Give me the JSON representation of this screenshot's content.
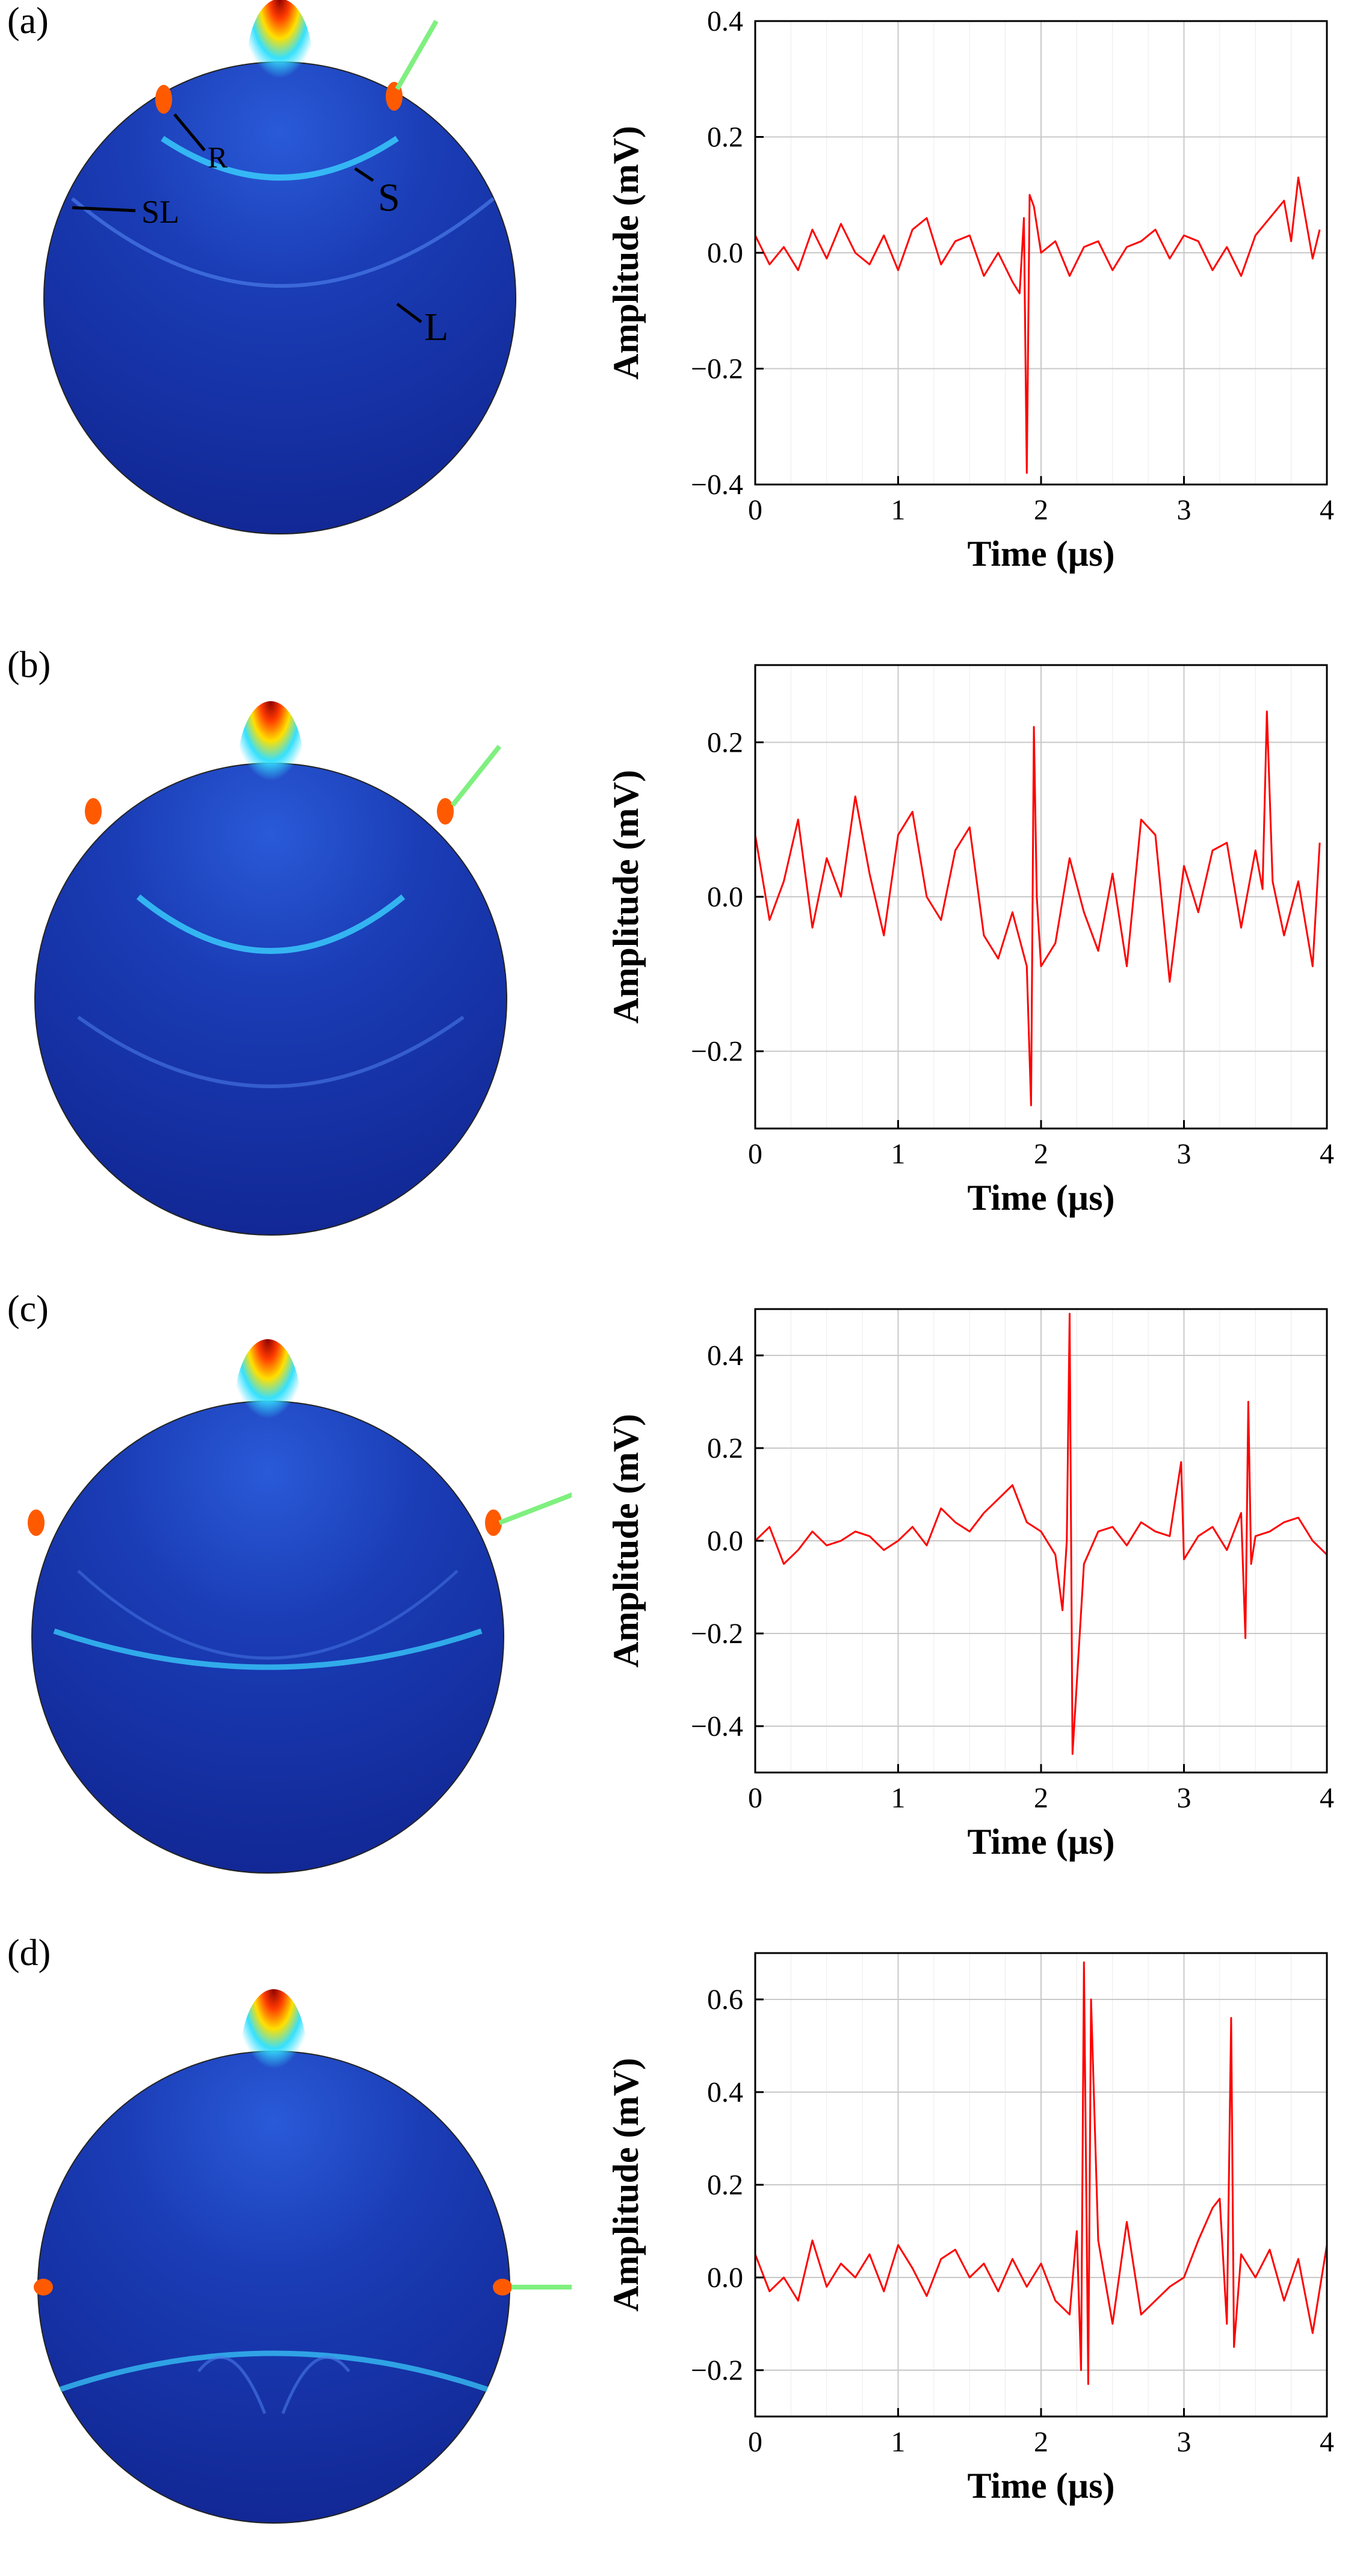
{
  "colors": {
    "signal": "#ff0000",
    "pointer_arrow": "#7ff07f",
    "field_background": "#12289a",
    "field_edge": "#1f4bd8",
    "hot_core": "#8a0000"
  },
  "panels": [
    {
      "label": "(a)",
      "annotations": [
        "R",
        "S",
        "SL",
        "L"
      ],
      "chart_data": {
        "type": "line",
        "xlabel": "Time (µs)",
        "ylabel": "Amplitude (mV)",
        "xlim": [
          0,
          4
        ],
        "ylim": [
          -0.4,
          0.4
        ],
        "xticks": [
          0,
          1,
          2,
          3,
          4
        ],
        "yticks": [
          -0.4,
          -0.2,
          0.0,
          0.2,
          0.4
        ],
        "ytick_labels": [
          "−0.4",
          "−0.2",
          "0.0",
          "0.2",
          "0.4"
        ],
        "grid": true,
        "series": [
          {
            "name": "signal",
            "x": [
              0,
              0.1,
              0.2,
              0.3,
              0.4,
              0.5,
              0.6,
              0.7,
              0.8,
              0.9,
              1.0,
              1.1,
              1.2,
              1.3,
              1.4,
              1.5,
              1.6,
              1.7,
              1.8,
              1.85,
              1.88,
              1.9,
              1.92,
              1.95,
              2.0,
              2.1,
              2.2,
              2.3,
              2.4,
              2.5,
              2.6,
              2.7,
              2.8,
              2.9,
              3.0,
              3.1,
              3.2,
              3.3,
              3.4,
              3.5,
              3.6,
              3.7,
              3.75,
              3.8,
              3.9,
              3.95
            ],
            "y": [
              0.03,
              -0.02,
              0.01,
              -0.03,
              0.04,
              -0.01,
              0.05,
              0.0,
              -0.02,
              0.03,
              -0.03,
              0.04,
              0.06,
              -0.02,
              0.02,
              0.03,
              -0.04,
              0.0,
              -0.05,
              -0.07,
              0.06,
              -0.38,
              0.1,
              0.08,
              0.0,
              0.02,
              -0.04,
              0.01,
              0.02,
              -0.03,
              0.01,
              0.02,
              0.04,
              -0.01,
              0.03,
              0.02,
              -0.03,
              0.01,
              -0.04,
              0.03,
              0.06,
              0.09,
              0.02,
              0.13,
              -0.01,
              0.04
            ]
          }
        ]
      }
    },
    {
      "label": "(b)",
      "annotations": [],
      "chart_data": {
        "type": "line",
        "xlabel": "Time (µs)",
        "ylabel": "Amplitude (mV)",
        "xlim": [
          0,
          4
        ],
        "ylim": [
          -0.3,
          0.3
        ],
        "xticks": [
          0,
          1,
          2,
          3,
          4
        ],
        "yticks": [
          -0.2,
          0.0,
          0.2
        ],
        "ytick_labels": [
          "−0.2",
          "0.0",
          "0.2"
        ],
        "grid": true,
        "series": [
          {
            "name": "signal",
            "x": [
              0,
              0.1,
              0.2,
              0.3,
              0.4,
              0.5,
              0.6,
              0.7,
              0.8,
              0.9,
              1.0,
              1.1,
              1.2,
              1.3,
              1.4,
              1.5,
              1.6,
              1.7,
              1.8,
              1.9,
              1.93,
              1.95,
              1.97,
              2.0,
              2.1,
              2.2,
              2.3,
              2.4,
              2.5,
              2.6,
              2.7,
              2.8,
              2.9,
              3.0,
              3.1,
              3.2,
              3.3,
              3.4,
              3.5,
              3.55,
              3.58,
              3.62,
              3.7,
              3.8,
              3.9,
              3.95
            ],
            "y": [
              0.08,
              -0.03,
              0.02,
              0.1,
              -0.04,
              0.05,
              0.0,
              0.13,
              0.03,
              -0.05,
              0.08,
              0.11,
              0.0,
              -0.03,
              0.06,
              0.09,
              -0.05,
              -0.08,
              -0.02,
              -0.09,
              -0.27,
              0.22,
              0.0,
              -0.09,
              -0.06,
              0.05,
              -0.02,
              -0.07,
              0.03,
              -0.09,
              0.1,
              0.08,
              -0.11,
              0.04,
              -0.02,
              0.06,
              0.07,
              -0.04,
              0.06,
              0.01,
              0.24,
              0.02,
              -0.05,
              0.02,
              -0.09,
              0.07
            ]
          }
        ]
      }
    },
    {
      "label": "(c)",
      "annotations": [],
      "chart_data": {
        "type": "line",
        "xlabel": "Time (µs)",
        "ylabel": "Amplitude (mV)",
        "xlim": [
          0,
          4
        ],
        "ylim": [
          -0.5,
          0.5
        ],
        "xticks": [
          0,
          1,
          2,
          3,
          4
        ],
        "yticks": [
          -0.4,
          -0.2,
          0.0,
          0.2,
          0.4
        ],
        "ytick_labels": [
          "−0.4",
          "−0.2",
          "0.0",
          "0.2",
          "0.4"
        ],
        "grid": true,
        "series": [
          {
            "name": "signal",
            "x": [
              0,
              0.1,
              0.2,
              0.3,
              0.4,
              0.5,
              0.6,
              0.7,
              0.8,
              0.9,
              1.0,
              1.1,
              1.2,
              1.3,
              1.4,
              1.5,
              1.6,
              1.7,
              1.8,
              1.9,
              2.0,
              2.1,
              2.15,
              2.18,
              2.2,
              2.22,
              2.3,
              2.4,
              2.5,
              2.6,
              2.7,
              2.8,
              2.9,
              2.98,
              3.0,
              3.1,
              3.2,
              3.3,
              3.4,
              3.43,
              3.45,
              3.47,
              3.5,
              3.6,
              3.7,
              3.8,
              3.9,
              4.0
            ],
            "y": [
              0.0,
              0.03,
              -0.05,
              -0.02,
              0.02,
              -0.01,
              0.0,
              0.02,
              0.01,
              -0.02,
              0.0,
              0.03,
              -0.01,
              0.07,
              0.04,
              0.02,
              0.06,
              0.09,
              0.12,
              0.04,
              0.02,
              -0.03,
              -0.15,
              0.0,
              0.49,
              -0.46,
              -0.05,
              0.02,
              0.03,
              -0.01,
              0.04,
              0.02,
              0.01,
              0.17,
              -0.04,
              0.01,
              0.03,
              -0.02,
              0.06,
              -0.21,
              0.3,
              -0.05,
              0.01,
              0.02,
              0.04,
              0.05,
              0.0,
              -0.03
            ]
          }
        ]
      }
    },
    {
      "label": "(d)",
      "annotations": [],
      "chart_data": {
        "type": "line",
        "xlabel": "Time (µs)",
        "ylabel": "Amplitude (mV)",
        "xlim": [
          0,
          4
        ],
        "ylim": [
          -0.3,
          0.7
        ],
        "xticks": [
          0,
          1,
          2,
          3,
          4
        ],
        "yticks": [
          -0.2,
          0.0,
          0.2,
          0.4,
          0.6
        ],
        "ytick_labels": [
          "−0.2",
          "0.0",
          "0.2",
          "0.4",
          "0.6"
        ],
        "grid": true,
        "series": [
          {
            "name": "signal",
            "x": [
              0,
              0.1,
              0.2,
              0.3,
              0.4,
              0.5,
              0.6,
              0.7,
              0.8,
              0.9,
              1.0,
              1.1,
              1.2,
              1.3,
              1.4,
              1.5,
              1.6,
              1.7,
              1.8,
              1.9,
              2.0,
              2.1,
              2.2,
              2.25,
              2.28,
              2.3,
              2.33,
              2.35,
              2.4,
              2.5,
              2.6,
              2.7,
              2.8,
              2.9,
              3.0,
              3.1,
              3.2,
              3.25,
              3.3,
              3.33,
              3.35,
              3.4,
              3.5,
              3.6,
              3.7,
              3.8,
              3.9,
              4.0
            ],
            "y": [
              0.05,
              -0.03,
              0.0,
              -0.05,
              0.08,
              -0.02,
              0.03,
              0.0,
              0.05,
              -0.03,
              0.07,
              0.02,
              -0.04,
              0.04,
              0.06,
              0.0,
              0.03,
              -0.03,
              0.04,
              -0.02,
              0.03,
              -0.05,
              -0.08,
              0.1,
              -0.2,
              0.68,
              -0.23,
              0.6,
              0.08,
              -0.1,
              0.12,
              -0.08,
              -0.05,
              -0.02,
              0.0,
              0.08,
              0.15,
              0.17,
              -0.1,
              0.56,
              -0.15,
              0.05,
              0.0,
              0.06,
              -0.05,
              0.04,
              -0.12,
              0.07
            ]
          }
        ]
      }
    }
  ]
}
